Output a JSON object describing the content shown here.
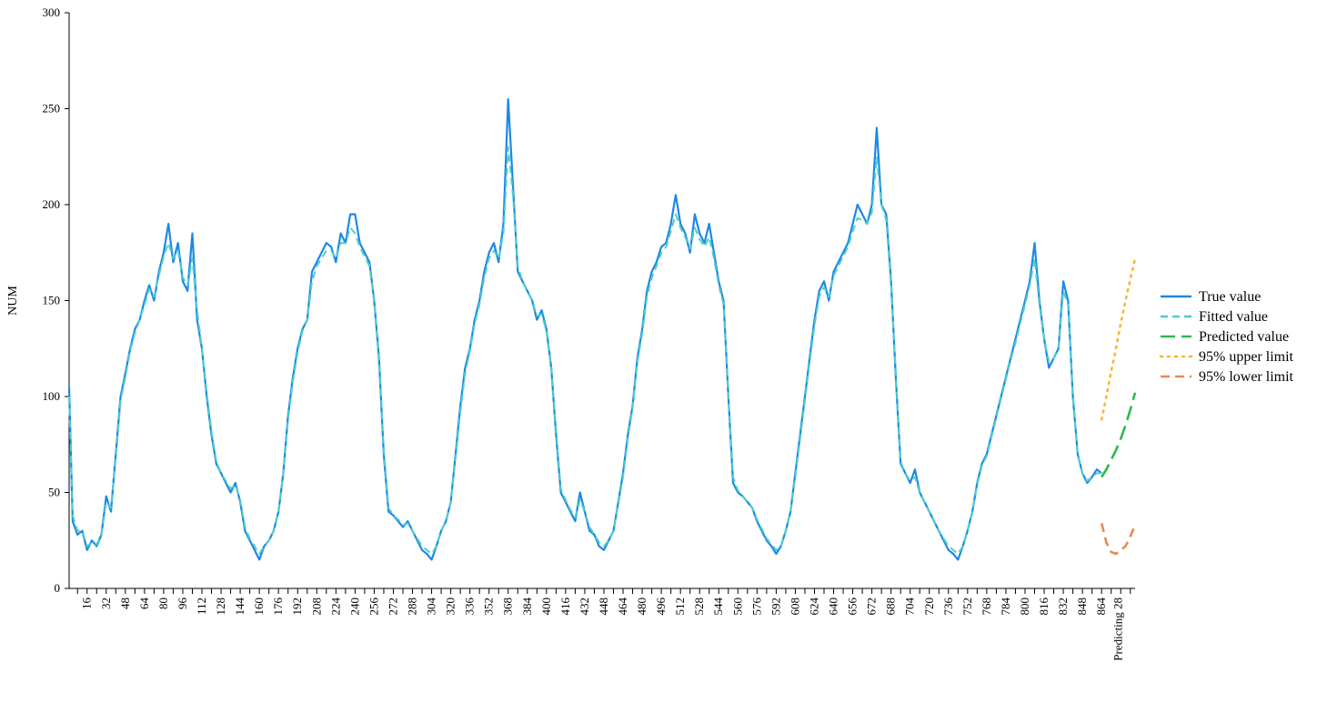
{
  "chart_data": {
    "type": "line",
    "title": "",
    "xlabel": "",
    "ylabel": "NUM",
    "ylim": [
      0,
      300
    ],
    "yticks": [
      0,
      50,
      100,
      150,
      200,
      250,
      300
    ],
    "xlim": [
      1,
      892
    ],
    "xticks": [
      16,
      32,
      48,
      64,
      80,
      96,
      112,
      128,
      144,
      160,
      176,
      192,
      208,
      224,
      240,
      256,
      272,
      288,
      304,
      320,
      336,
      352,
      368,
      384,
      400,
      416,
      432,
      448,
      464,
      480,
      496,
      512,
      528,
      544,
      560,
      576,
      592,
      608,
      624,
      640,
      656,
      672,
      688,
      704,
      720,
      736,
      752,
      768,
      784,
      800,
      816,
      832,
      848,
      864
    ],
    "xtick_labels": [
      "16",
      "32",
      "48",
      "64",
      "80",
      "96",
      "112",
      "128",
      "144",
      "160",
      "176",
      "192",
      "208",
      "224",
      "240",
      "256",
      "272",
      "288",
      "304",
      "320",
      "336",
      "352",
      "368",
      "384",
      "400",
      "416",
      "432",
      "448",
      "464",
      "480",
      "496",
      "512",
      "528",
      "544",
      "560",
      "576",
      "592",
      "608",
      "624",
      "640",
      "656",
      "672",
      "688",
      "704",
      "720",
      "736",
      "752",
      "768",
      "784",
      "800",
      "816",
      "832",
      "848",
      "864"
    ],
    "forecast_label": "Predicting 28",
    "grid": false,
    "legend_position": "right",
    "series": [
      {
        "name": "True value",
        "color": "#1e88e5",
        "dash": "solid",
        "x": [
          1,
          4,
          8,
          12,
          16,
          20,
          24,
          28,
          32,
          36,
          40,
          44,
          48,
          52,
          56,
          60,
          64,
          68,
          72,
          76,
          80,
          84,
          88,
          92,
          96,
          100,
          104,
          108,
          112,
          116,
          120,
          124,
          128,
          132,
          136,
          140,
          144,
          148,
          152,
          156,
          160,
          164,
          168,
          172,
          176,
          180,
          184,
          188,
          192,
          196,
          200,
          204,
          208,
          212,
          216,
          220,
          224,
          228,
          232,
          236,
          240,
          244,
          248,
          252,
          256,
          260,
          264,
          268,
          272,
          276,
          280,
          284,
          288,
          292,
          296,
          300,
          304,
          308,
          312,
          316,
          320,
          324,
          328,
          332,
          336,
          340,
          344,
          348,
          352,
          356,
          360,
          364,
          368,
          372,
          376,
          380,
          384,
          388,
          392,
          396,
          400,
          404,
          408,
          412,
          416,
          420,
          424,
          428,
          432,
          436,
          440,
          444,
          448,
          452,
          456,
          460,
          464,
          468,
          472,
          476,
          480,
          484,
          488,
          492,
          496,
          500,
          504,
          508,
          512,
          516,
          520,
          524,
          528,
          532,
          536,
          540,
          544,
          548,
          552,
          556,
          560,
          564,
          568,
          572,
          576,
          580,
          584,
          588,
          592,
          596,
          600,
          604,
          608,
          612,
          616,
          620,
          624,
          628,
          632,
          636,
          640,
          644,
          648,
          652,
          656,
          660,
          664,
          668,
          672,
          676,
          680,
          684,
          688,
          692,
          696,
          700,
          704,
          708,
          712,
          716,
          720,
          724,
          728,
          732,
          736,
          740,
          744,
          748,
          752,
          756,
          760,
          764,
          768,
          772,
          776,
          780,
          784,
          788,
          792,
          796,
          800,
          804,
          808,
          812,
          816,
          820,
          824,
          828,
          832,
          836,
          840,
          844,
          848,
          852,
          856,
          860,
          864
        ],
        "y": [
          105,
          35,
          28,
          30,
          20,
          25,
          22,
          28,
          48,
          40,
          70,
          100,
          112,
          125,
          135,
          140,
          150,
          158,
          150,
          165,
          175,
          190,
          170,
          180,
          160,
          155,
          185,
          140,
          125,
          100,
          80,
          65,
          60,
          55,
          50,
          55,
          45,
          30,
          25,
          20,
          15,
          22,
          25,
          30,
          40,
          60,
          90,
          110,
          125,
          135,
          140,
          165,
          170,
          175,
          180,
          178,
          170,
          185,
          180,
          195,
          195,
          180,
          175,
          170,
          150,
          120,
          70,
          40,
          38,
          35,
          32,
          35,
          30,
          25,
          20,
          18,
          15,
          22,
          30,
          35,
          45,
          70,
          95,
          115,
          125,
          140,
          150,
          165,
          175,
          180,
          170,
          190,
          255,
          210,
          165,
          160,
          155,
          150,
          140,
          145,
          135,
          115,
          80,
          50,
          45,
          40,
          35,
          50,
          40,
          30,
          28,
          22,
          20,
          25,
          30,
          45,
          60,
          80,
          95,
          120,
          135,
          155,
          165,
          170,
          178,
          180,
          190,
          205,
          190,
          185,
          175,
          195,
          185,
          180,
          190,
          175,
          160,
          150,
          100,
          55,
          50,
          48,
          45,
          42,
          35,
          30,
          25,
          22,
          18,
          22,
          30,
          40,
          60,
          80,
          100,
          120,
          140,
          155,
          160,
          150,
          165,
          170,
          175,
          180,
          190,
          200,
          195,
          190,
          200,
          240,
          200,
          195,
          160,
          110,
          65,
          60,
          55,
          62,
          50,
          45,
          40,
          35,
          30,
          25,
          20,
          18,
          15,
          22,
          30,
          40,
          55,
          65,
          70,
          80,
          90,
          100,
          110,
          120,
          130,
          140,
          150,
          160,
          180,
          150,
          130,
          115,
          120,
          125,
          160,
          150,
          100,
          70,
          60,
          55,
          58,
          62,
          60
        ]
      },
      {
        "name": "Fitted value",
        "color": "#4dd0c8",
        "dash": "8,5",
        "x": [
          1,
          4,
          8,
          12,
          16,
          20,
          24,
          28,
          32,
          36,
          40,
          44,
          48,
          52,
          56,
          60,
          64,
          68,
          72,
          76,
          80,
          84,
          88,
          92,
          96,
          100,
          104,
          108,
          112,
          116,
          120,
          124,
          128,
          132,
          136,
          140,
          144,
          148,
          152,
          156,
          160,
          164,
          168,
          172,
          176,
          180,
          184,
          188,
          192,
          196,
          200,
          204,
          208,
          212,
          216,
          220,
          224,
          228,
          232,
          236,
          240,
          244,
          248,
          252,
          256,
          260,
          264,
          268,
          272,
          276,
          280,
          284,
          288,
          292,
          296,
          300,
          304,
          308,
          312,
          316,
          320,
          324,
          328,
          332,
          336,
          340,
          344,
          348,
          352,
          356,
          360,
          364,
          368,
          372,
          376,
          380,
          384,
          388,
          392,
          396,
          400,
          404,
          408,
          412,
          416,
          420,
          424,
          428,
          432,
          436,
          440,
          444,
          448,
          452,
          456,
          460,
          464,
          468,
          472,
          476,
          480,
          484,
          488,
          492,
          496,
          500,
          504,
          508,
          512,
          516,
          520,
          524,
          528,
          532,
          536,
          540,
          544,
          548,
          552,
          556,
          560,
          564,
          568,
          572,
          576,
          580,
          584,
          588,
          592,
          596,
          600,
          604,
          608,
          612,
          616,
          620,
          624,
          628,
          632,
          636,
          640,
          644,
          648,
          652,
          656,
          660,
          664,
          668,
          672,
          676,
          680,
          684,
          688,
          692,
          696,
          700,
          704,
          708,
          712,
          716,
          720,
          724,
          728,
          732,
          736,
          740,
          744,
          748,
          752,
          756,
          760,
          764,
          768,
          772,
          776,
          780,
          784,
          788,
          792,
          796,
          800,
          804,
          808,
          812,
          816,
          820,
          824,
          828,
          832,
          836,
          840,
          844,
          848,
          852,
          856,
          860,
          864
        ],
        "y": [
          100,
          38,
          30,
          30,
          22,
          24,
          23,
          28,
          45,
          42,
          68,
          98,
          110,
          124,
          133,
          140,
          148,
          156,
          152,
          163,
          173,
          180,
          172,
          176,
          162,
          158,
          172,
          145,
          125,
          102,
          82,
          66,
          60,
          56,
          52,
          54,
          46,
          32,
          26,
          22,
          18,
          22,
          25,
          30,
          40,
          60,
          88,
          108,
          123,
          134,
          140,
          160,
          168,
          172,
          176,
          176,
          172,
          180,
          180,
          188,
          185,
          178,
          173,
          168,
          150,
          122,
          72,
          42,
          38,
          36,
          33,
          34,
          30,
          26,
          22,
          20,
          18,
          22,
          30,
          35,
          45,
          68,
          92,
          112,
          124,
          138,
          148,
          162,
          172,
          176,
          172,
          185,
          230,
          205,
          168,
          160,
          155,
          150,
          142,
          143,
          134,
          115,
          82,
          52,
          46,
          41,
          37,
          46,
          40,
          32,
          28,
          24,
          22,
          25,
          30,
          44,
          58,
          78,
          94,
          118,
          133,
          152,
          162,
          168,
          175,
          178,
          186,
          195,
          188,
          183,
          177,
          188,
          182,
          178,
          183,
          172,
          158,
          148,
          100,
          58,
          51,
          48,
          45,
          42,
          36,
          31,
          26,
          23,
          20,
          22,
          30,
          40,
          58,
          78,
          98,
          118,
          137,
          152,
          157,
          152,
          163,
          168,
          173,
          178,
          186,
          193,
          192,
          190,
          196,
          225,
          200,
          192,
          158,
          112,
          66,
          60,
          56,
          58,
          50,
          45,
          40,
          35,
          30,
          26,
          22,
          20,
          18,
          22,
          30,
          40,
          54,
          64,
          69,
          79,
          89,
          99,
          109,
          119,
          128,
          138,
          148,
          158,
          172,
          148,
          130,
          118,
          120,
          126,
          155,
          148,
          100,
          70,
          60,
          56,
          58,
          60,
          60
        ]
      },
      {
        "name": "Predicted value",
        "color": "#2fb84f",
        "dash": "16,7",
        "x": [
          864,
          868,
          872,
          876,
          880,
          884,
          888,
          892
        ],
        "y": [
          58,
          62,
          67,
          72,
          78,
          85,
          93,
          102
        ]
      },
      {
        "name": "95% upper limit",
        "color": "#f7b733",
        "dash": "2,6",
        "x": [
          864,
          868,
          872,
          876,
          880,
          884,
          888,
          892
        ],
        "y": [
          88,
          100,
          113,
          125,
          138,
          150,
          161,
          172
        ]
      },
      {
        "name": "95% lower limit",
        "color": "#e98a4e",
        "dash": "10,6",
        "x": [
          864,
          868,
          872,
          876,
          880,
          884,
          888,
          892
        ],
        "y": [
          34,
          24,
          19,
          18,
          20,
          22,
          27,
          33
        ]
      }
    ]
  }
}
